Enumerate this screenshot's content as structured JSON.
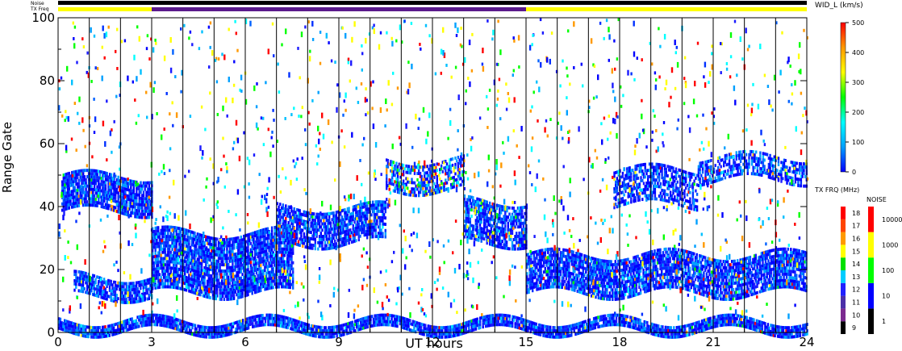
{
  "chart_data": {
    "type": "heatmap",
    "xlabel": "UT hours",
    "ylabel": "Range Gate",
    "xlim": [
      0,
      24
    ],
    "ylim": [
      0,
      100
    ],
    "x_ticks": [
      "0",
      "3",
      "6",
      "9",
      "12",
      "15",
      "18",
      "21",
      "24"
    ],
    "y_ticks": [
      "0",
      "20",
      "40",
      "60",
      "80",
      "100"
    ],
    "beam_sweep_boundaries_ut": [
      1.0,
      2.0,
      3.0,
      4.0,
      5.0,
      6.0,
      7.0,
      8.0,
      9.0,
      10.0,
      11.0,
      12.0,
      13.0,
      14.0,
      15.0,
      16.0,
      17.0,
      18.0,
      19.0,
      20.0,
      21.0,
      22.0,
      23.0
    ],
    "header_bars": {
      "noise_label": "Noise",
      "freq_label": "TX Freq",
      "noise_color": "#000000",
      "freq_segments": [
        {
          "start": 0,
          "end": 3,
          "color": "#ffff00"
        },
        {
          "start": 3,
          "end": 15,
          "color": "#5a1a8c"
        },
        {
          "start": 15,
          "end": 24,
          "color": "#ffff00"
        }
      ]
    },
    "scatter_bands": [
      {
        "t0": 0.1,
        "t1": 3.0,
        "g0": 38,
        "g1": 50,
        "density": 0.85,
        "speed": "low"
      },
      {
        "t0": 0.5,
        "t1": 3.0,
        "g0": 11,
        "g1": 18,
        "density": 0.8,
        "speed": "low"
      },
      {
        "t0": 3.0,
        "t1": 7.5,
        "g0": 12,
        "g1": 32,
        "density": 0.85,
        "speed": "low"
      },
      {
        "t0": 7.0,
        "t1": 10.5,
        "g0": 28,
        "g1": 40,
        "density": 0.75,
        "speed": "low"
      },
      {
        "t0": 10.5,
        "t1": 13.0,
        "g0": 45,
        "g1": 55,
        "density": 0.6,
        "speed": "mixed"
      },
      {
        "t0": 13.0,
        "t1": 15.0,
        "g0": 28,
        "g1": 42,
        "density": 0.75,
        "speed": "low"
      },
      {
        "t0": 15.0,
        "t1": 24.0,
        "g0": 12,
        "g1": 25,
        "density": 0.8,
        "speed": "low"
      },
      {
        "t0": 17.8,
        "t1": 20.5,
        "g0": 40,
        "g1": 52,
        "density": 0.6,
        "speed": "low"
      },
      {
        "t0": 20.5,
        "t1": 24.0,
        "g0": 48,
        "g1": 56,
        "density": 0.6,
        "speed": "low"
      },
      {
        "t0": 0.0,
        "t1": 24.0,
        "g0": 0,
        "g1": 4,
        "density": 0.9,
        "speed": "low"
      }
    ],
    "width_scale": {
      "title": "WID_L (km/s)",
      "ticks": [
        "0",
        "100",
        "200",
        "300",
        "400",
        "500"
      ],
      "range": [
        0,
        500
      ],
      "colors": [
        "#0000ff",
        "#00a0ff",
        "#00ffff",
        "#00ff00",
        "#ffff00",
        "#ff9900",
        "#ff0000"
      ]
    },
    "freq_scale": {
      "title": "TX FRQ (MHz)",
      "ticks": [
        "9",
        "10",
        "11",
        "12",
        "13",
        "14",
        "15",
        "16",
        "17",
        "18"
      ],
      "colors": [
        "#000000",
        "#7b2a8f",
        "#4b2fa8",
        "#2020ff",
        "#00ccff",
        "#00e000",
        "#ffff00",
        "#ff9900",
        "#ff4400",
        "#ff0000"
      ]
    },
    "noise_scale": {
      "title": "NOISE",
      "ticks": [
        "1",
        "10",
        "100",
        "1000",
        "10000"
      ],
      "colors": [
        "#000000",
        "#0000ff",
        "#00ff00",
        "#ffff00",
        "#ff0000"
      ]
    }
  }
}
